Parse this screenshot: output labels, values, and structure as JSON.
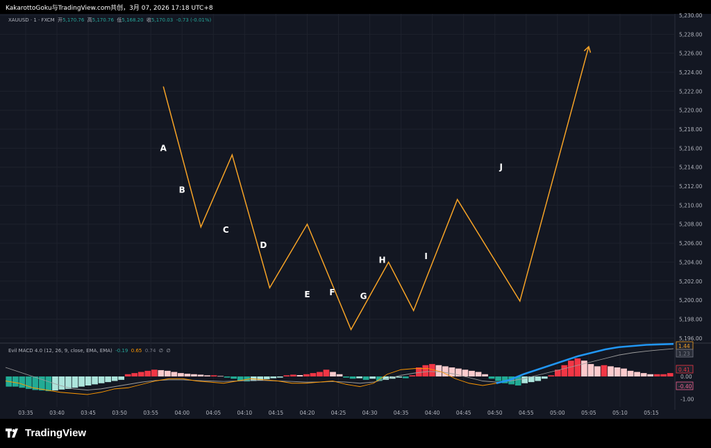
{
  "header": {
    "text": "KakarottoGoku与TradingView.com共创，3月 07, 2026 17:18 UTC+8"
  },
  "symbol_bar": {
    "symbol": "XAUUSD · 1 · FXCM",
    "open_label": "开",
    "open": "5,170.76",
    "high_label": "高",
    "high": "5,170.76",
    "low_label": "低",
    "low": "5,168.20",
    "close_label": "收",
    "close": "5,170.03",
    "change": "-0.73 (-0.01%)"
  },
  "macd_legend": {
    "name": "Evil MACD 4.0 (12, 26, 9, close, EMA, EMA)",
    "v1": "-0.19",
    "v2": "0.65",
    "v3": "0.74",
    "s1": "∅",
    "s2": "∅"
  },
  "footer": {
    "brand": "TradingView"
  },
  "colors": {
    "background": "#131722",
    "path": "#f7a326",
    "up_strong": "#f23645",
    "up_weak": "#fccbcd",
    "down_strong": "#22ab94",
    "down_weak": "#ace5dc",
    "macd_line": "#ff9800",
    "signal_line": "#2962ff",
    "blue_line": "#2196f3"
  },
  "chart_data": [
    {
      "type": "line",
      "title": "",
      "x_ticks": [
        "03:35",
        "03:40",
        "03:45",
        "03:50",
        "03:55",
        "04:00",
        "04:05",
        "04:10",
        "04:15",
        "04:20",
        "04:25",
        "04:30",
        "04:35",
        "04:40",
        "04:45",
        "04:50",
        "04:55",
        "05:00",
        "05:05",
        "05:10",
        "05:15"
      ],
      "y_ticks": [
        "5,230.00",
        "5,228.00",
        "5,226.00",
        "5,224.00",
        "5,222.00",
        "5,220.00",
        "5,218.00",
        "5,216.00",
        "5,214.00",
        "5,212.00",
        "5,210.00",
        "5,208.00",
        "5,206.00",
        "5,204.00",
        "5,202.00",
        "5,200.00",
        "5,198.00",
        "5,196.00"
      ],
      "ylim": [
        5196,
        5230
      ],
      "projected_path": {
        "x": [
          "03:57",
          "04:03",
          "04:08",
          "04:14",
          "04:20",
          "04:27",
          "04:33",
          "04:37",
          "04:44",
          "04:54",
          "05:05"
        ],
        "y": [
          5222.5,
          5207.7,
          5215.3,
          5201.3,
          5208.0,
          5196.9,
          5204.0,
          5198.9,
          5210.6,
          5199.9,
          5226.7
        ],
        "arrow_at_end": true
      },
      "labels": [
        {
          "text": "A",
          "x": "03:57",
          "y": 5216.0
        },
        {
          "text": "B",
          "x": "04:00",
          "y": 5211.6
        },
        {
          "text": "C",
          "x": "04:07",
          "y": 5207.4
        },
        {
          "text": "D",
          "x": "04:13",
          "y": 5205.8
        },
        {
          "text": "E",
          "x": "04:20",
          "y": 5200.6
        },
        {
          "text": "F",
          "x": "04:24",
          "y": 5200.8
        },
        {
          "text": "G",
          "x": "04:29",
          "y": 5200.4
        },
        {
          "text": "H",
          "x": "04:32",
          "y": 5204.2
        },
        {
          "text": "I",
          "x": "04:39",
          "y": 5204.6
        },
        {
          "text": "J",
          "x": "04:51",
          "y": 5214.0
        }
      ]
    },
    {
      "type": "bar",
      "title": "Evil MACD 4.0 (12, 26, 9, close, EMA, EMA)",
      "y_ticks": [
        "1.00",
        "0.00",
        "-1.00"
      ],
      "ylim": [
        -1.25,
        1.55
      ],
      "price_tags": [
        {
          "text": "1.44",
          "color": "#f7a326"
        },
        {
          "text": "1.23",
          "color": "#787b86"
        },
        {
          "text": "0.41",
          "color": "#f23645"
        },
        {
          "text": "-0.40",
          "color": "#f06292"
        }
      ],
      "histogram": [
        -0.45,
        -0.45,
        -0.5,
        -0.55,
        -0.6,
        -0.62,
        -0.65,
        -0.62,
        -0.58,
        -0.55,
        -0.5,
        -0.45,
        -0.4,
        -0.35,
        -0.3,
        -0.25,
        -0.2,
        -0.15,
        0.1,
        0.15,
        0.2,
        0.25,
        0.3,
        0.28,
        0.25,
        0.2,
        0.15,
        0.12,
        0.1,
        0.08,
        0.05,
        0.05,
        0.02,
        -0.05,
        -0.1,
        -0.2,
        -0.22,
        -0.2,
        -0.18,
        -0.12,
        -0.08,
        -0.05,
        0.05,
        0.08,
        0.06,
        0.1,
        0.15,
        0.2,
        0.3,
        0.2,
        0.1,
        -0.05,
        -0.1,
        -0.08,
        -0.15,
        -0.1,
        -0.2,
        -0.15,
        -0.1,
        -0.05,
        -0.08,
        0.05,
        0.4,
        0.5,
        0.55,
        0.5,
        0.45,
        0.4,
        0.35,
        0.3,
        0.25,
        0.2,
        0.1,
        -0.1,
        -0.2,
        -0.3,
        -0.35,
        -0.4,
        -0.3,
        -0.25,
        -0.2,
        -0.1,
        0.05,
        0.3,
        0.5,
        0.7,
        0.8,
        0.7,
        0.55,
        0.45,
        0.5,
        0.45,
        0.4,
        0.35,
        0.25,
        0.2,
        0.15,
        0.1,
        0.1,
        0.1,
        0.15
      ],
      "macd_line": [
        -0.2,
        -0.3,
        -0.5,
        -0.6,
        -0.7,
        -0.75,
        -0.8,
        -0.7,
        -0.55,
        -0.5,
        -0.35,
        -0.2,
        -0.1,
        -0.1,
        -0.2,
        -0.25,
        -0.3,
        -0.2,
        -0.1,
        -0.15,
        -0.2,
        -0.3,
        -0.3,
        -0.25,
        -0.2,
        -0.35,
        -0.45,
        -0.3,
        0.1,
        0.3,
        0.35,
        0.35,
        0.2,
        -0.1,
        -0.3,
        -0.4,
        -0.3,
        -0.15,
        0.1,
        0.3,
        0.5,
        0.7,
        0.9,
        1.05,
        1.2,
        1.3,
        1.35,
        1.4,
        1.42,
        1.44
      ],
      "signal_line": [
        0.4,
        0.2,
        0.0,
        -0.2,
        -0.4,
        -0.55,
        -0.6,
        -0.55,
        -0.45,
        -0.35,
        -0.25,
        -0.18,
        -0.15,
        -0.15,
        -0.18,
        -0.2,
        -0.22,
        -0.2,
        -0.18,
        -0.18,
        -0.2,
        -0.22,
        -0.25,
        -0.25,
        -0.22,
        -0.25,
        -0.3,
        -0.25,
        -0.1,
        0.05,
        0.15,
        0.22,
        0.2,
        0.1,
        -0.05,
        -0.2,
        -0.25,
        -0.2,
        -0.1,
        0.05,
        0.2,
        0.35,
        0.5,
        0.65,
        0.8,
        0.95,
        1.05,
        1.12,
        1.18,
        1.23
      ]
    }
  ]
}
